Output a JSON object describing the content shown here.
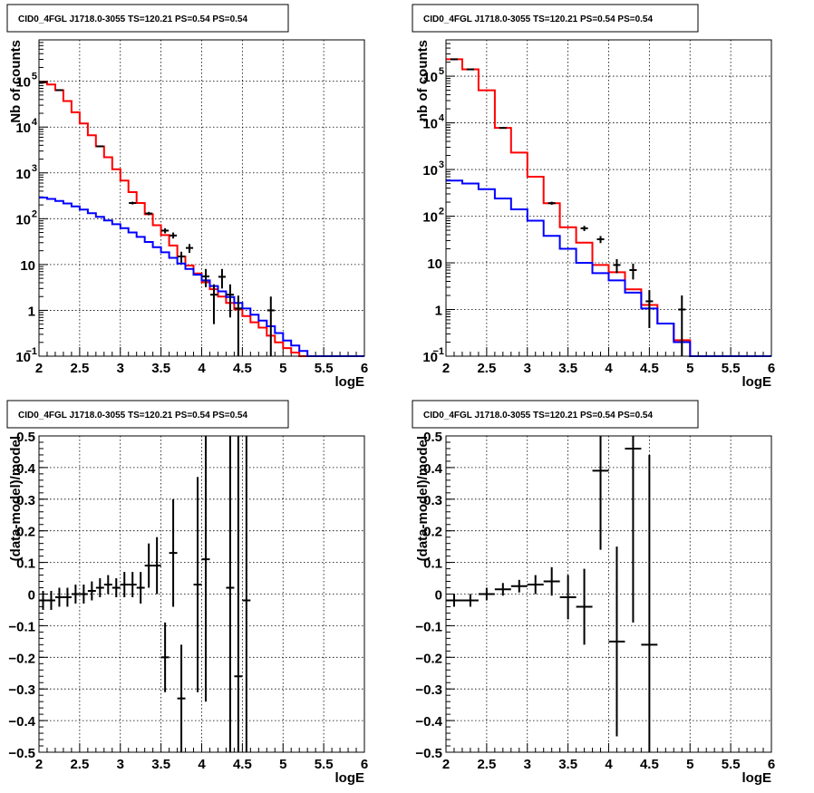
{
  "chart_data": [
    {
      "type": "line",
      "title": "CID0_4FGL J1718.0-3055 TS=120.21 PS=0.54 PS=0.54",
      "xlabel": "logE",
      "ylabel": "Nb of counts",
      "xlim": [
        2,
        6
      ],
      "ylim": [
        0.1,
        800000
      ],
      "yscale": "log",
      "grid": true,
      "xticks": [
        "2",
        "2.5",
        "3",
        "3.5",
        "4",
        "4.5",
        "5",
        "5.5",
        "6"
      ],
      "yticks": [
        {
          "v": 0.1,
          "base": "10",
          "exp": "−1"
        },
        {
          "v": 1,
          "base": "1",
          "exp": ""
        },
        {
          "v": 10,
          "base": "10",
          "exp": ""
        },
        {
          "v": 100,
          "base": "10",
          "exp": "2"
        },
        {
          "v": 1000,
          "base": "10",
          "exp": "3"
        },
        {
          "v": 10000,
          "base": "10",
          "exp": "4"
        },
        {
          "v": 100000,
          "base": "10",
          "exp": "5"
        }
      ],
      "bin_edges": [
        2,
        2.1,
        2.2,
        2.3,
        2.4,
        2.5,
        2.6,
        2.7,
        2.8,
        2.9,
        3,
        3.1,
        3.2,
        3.3,
        3.4,
        3.5,
        3.6,
        3.7,
        3.8,
        3.9,
        4,
        4.1,
        4.2,
        4.3,
        4.4,
        4.5,
        4.6,
        4.7,
        4.8,
        4.9,
        5,
        5.1,
        5.2,
        5.3,
        5.4,
        5.5,
        5.6,
        5.7,
        5.8,
        5.9,
        6
      ],
      "series": [
        {
          "color": "#ff0000",
          "values": [
            95000,
            85000,
            64000,
            37000,
            21000,
            12000,
            6600,
            3800,
            2200,
            1200,
            680,
            380,
            220,
            125,
            72,
            44,
            26,
            15,
            9.5,
            6.4,
            4.1,
            2.9,
            2.0,
            1.45,
            1.05,
            0.75,
            0.55,
            0.42,
            0.28,
            0.2,
            0.15,
            0.12,
            0.1,
            0.1,
            0.1,
            0.1,
            0.1,
            0.1,
            0.1,
            0.1
          ]
        },
        {
          "color": "#0000ff",
          "values": [
            290,
            270,
            245,
            215,
            185,
            158,
            132,
            110,
            92,
            76,
            62,
            50,
            40,
            31,
            24,
            18.5,
            14,
            10.5,
            8,
            6,
            4.5,
            3.4,
            2.6,
            1.95,
            1.45,
            1.1,
            0.8,
            0.6,
            0.45,
            0.32,
            0.22,
            0.17,
            0.13,
            0.1,
            0.1,
            0.1,
            0.1,
            0.1,
            0.1,
            0.1
          ]
        }
      ],
      "points": [
        {
          "x": 2.05,
          "y": 95000,
          "lo": 92000,
          "hi": 98000
        },
        {
          "x": 2.25,
          "y": 64000,
          "lo": 62000,
          "hi": 66000
        },
        {
          "x": 2.75,
          "y": 3800,
          "lo": 3650,
          "hi": 3950
        },
        {
          "x": 3.15,
          "y": 220,
          "lo": 205,
          "hi": 235
        },
        {
          "x": 3.35,
          "y": 130,
          "lo": 119,
          "hi": 141
        },
        {
          "x": 3.55,
          "y": 55,
          "lo": 48,
          "hi": 62
        },
        {
          "x": 3.65,
          "y": 43,
          "lo": 37,
          "hi": 50
        },
        {
          "x": 3.75,
          "y": 15,
          "lo": 11,
          "hi": 19
        },
        {
          "x": 3.85,
          "y": 23,
          "lo": 18,
          "hi": 28
        },
        {
          "x": 4.05,
          "y": 5.5,
          "lo": 3.2,
          "hi": 8
        },
        {
          "x": 4.15,
          "y": 2.2,
          "lo": 0.5,
          "hi": 3.7
        },
        {
          "x": 4.25,
          "y": 5.4,
          "lo": 3,
          "hi": 8
        },
        {
          "x": 4.35,
          "y": 2.2,
          "lo": 0.7,
          "hi": 3.7
        },
        {
          "x": 4.45,
          "y": 1.1,
          "lo": 0.1,
          "hi": 2.1
        },
        {
          "x": 4.85,
          "y": 1,
          "lo": 0.1,
          "hi": 2
        }
      ]
    },
    {
      "type": "line",
      "title": "CID0_4FGL J1718.0-3055 TS=120.21 PS=0.54 PS=0.54",
      "xlabel": "logE",
      "ylabel": "nb of counts",
      "xlim": [
        2,
        6
      ],
      "ylim": [
        0.1,
        600000
      ],
      "yscale": "log",
      "grid": true,
      "xticks": [
        "2",
        "2.5",
        "3",
        "3.5",
        "4",
        "4.5",
        "5",
        "5.5",
        "6"
      ],
      "yticks": [
        {
          "v": 0.1,
          "base": "10",
          "exp": "−1"
        },
        {
          "v": 1,
          "base": "1",
          "exp": ""
        },
        {
          "v": 10,
          "base": "10",
          "exp": ""
        },
        {
          "v": 100,
          "base": "10",
          "exp": "2"
        },
        {
          "v": 1000,
          "base": "10",
          "exp": "3"
        },
        {
          "v": 10000,
          "base": "10",
          "exp": "4"
        },
        {
          "v": 100000,
          "base": "10",
          "exp": "5"
        }
      ],
      "bin_edges": [
        2,
        2.2,
        2.4,
        2.6,
        2.8,
        3,
        3.2,
        3.4,
        3.6,
        3.8,
        4,
        4.2,
        4.4,
        4.6,
        4.8,
        5,
        5.2,
        5.4,
        5.6,
        5.8,
        6
      ],
      "series": [
        {
          "color": "#ff0000",
          "values": [
            230000,
            140000,
            50000,
            7800,
            2300,
            700,
            190,
            58,
            27,
            9,
            6.3,
            2.7,
            1.25,
            0.5,
            0.22,
            0.1,
            0.1,
            0.1,
            0.1,
            0.1
          ]
        },
        {
          "color": "#0000ff",
          "values": [
            580,
            500,
            380,
            240,
            140,
            80,
            38,
            20,
            10,
            6,
            4.2,
            2.3,
            1.05,
            0.5,
            0.2,
            0.1,
            0.1,
            0.1,
            0.1,
            0.1
          ]
        }
      ],
      "points": [
        {
          "x": 2.1,
          "y": 230000,
          "lo": 226000,
          "hi": 234000
        },
        {
          "x": 2.3,
          "y": 140000,
          "lo": 137000,
          "hi": 143000
        },
        {
          "x": 2.7,
          "y": 7800,
          "lo": 7600,
          "hi": 8000
        },
        {
          "x": 3.3,
          "y": 190,
          "lo": 176,
          "hi": 204
        },
        {
          "x": 3.7,
          "y": 55,
          "lo": 48,
          "hi": 62
        },
        {
          "x": 3.9,
          "y": 32,
          "lo": 26.5,
          "hi": 37.5
        },
        {
          "x": 4.1,
          "y": 9,
          "lo": 6,
          "hi": 12
        },
        {
          "x": 4.3,
          "y": 7,
          "lo": 4.4,
          "hi": 9.6
        },
        {
          "x": 4.5,
          "y": 1.5,
          "lo": 0.4,
          "hi": 2.6
        },
        {
          "x": 4.9,
          "y": 1,
          "lo": 0.1,
          "hi": 2
        }
      ]
    },
    {
      "type": "scatter",
      "title": "CID0_4FGL J1718.0-3055 TS=120.21 PS=0.54 PS=0.54",
      "xlabel": "logE",
      "ylabel": "(data-model)/model",
      "xlim": [
        2,
        6
      ],
      "ylim": [
        -0.5,
        0.5
      ],
      "grid": true,
      "xticks": [
        "2",
        "2.5",
        "3",
        "3.5",
        "4",
        "4.5",
        "5",
        "5.5",
        "6"
      ],
      "yticks": [
        "−0.5",
        "−0.4",
        "−0.3",
        "−0.2",
        "−0.1",
        "0",
        "0.1",
        "0.2",
        "0.3",
        "0.4",
        "0.5"
      ],
      "points": [
        {
          "x": 2.05,
          "y": -0.02,
          "err": 0.03,
          "xerr": 0.05
        },
        {
          "x": 2.15,
          "y": -0.02,
          "err": 0.03,
          "xerr": 0.05
        },
        {
          "x": 2.25,
          "y": -0.01,
          "err": 0.03,
          "xerr": 0.05
        },
        {
          "x": 2.35,
          "y": -0.01,
          "err": 0.03,
          "xerr": 0.05
        },
        {
          "x": 2.45,
          "y": 0.0,
          "err": 0.03,
          "xerr": 0.05
        },
        {
          "x": 2.55,
          "y": 0.0,
          "err": 0.03,
          "xerr": 0.05
        },
        {
          "x": 2.65,
          "y": 0.01,
          "err": 0.03,
          "xerr": 0.05
        },
        {
          "x": 2.75,
          "y": 0.02,
          "err": 0.03,
          "xerr": 0.05
        },
        {
          "x": 2.85,
          "y": 0.03,
          "err": 0.03,
          "xerr": 0.05
        },
        {
          "x": 2.95,
          "y": 0.02,
          "err": 0.03,
          "xerr": 0.05
        },
        {
          "x": 3.05,
          "y": 0.03,
          "err": 0.04,
          "xerr": 0.05
        },
        {
          "x": 3.15,
          "y": 0.03,
          "err": 0.04,
          "xerr": 0.05
        },
        {
          "x": 3.25,
          "y": 0.02,
          "err": 0.05,
          "xerr": 0.05
        },
        {
          "x": 3.35,
          "y": 0.09,
          "err": 0.07,
          "xerr": 0.05
        },
        {
          "x": 3.45,
          "y": 0.09,
          "err": 0.09,
          "xerr": 0.05
        },
        {
          "x": 3.55,
          "y": -0.2,
          "err": 0.11,
          "xerr": 0.05
        },
        {
          "x": 3.65,
          "y": 0.13,
          "err": 0.17,
          "xerr": 0.05
        },
        {
          "x": 3.75,
          "y": -0.33,
          "err": 0.17,
          "xerr": 0.05
        },
        {
          "x": 3.95,
          "y": 0.03,
          "err": 0.34,
          "xerr": 0.05
        },
        {
          "x": 4.05,
          "y": 0.11,
          "err": 0.45,
          "xerr": 0.05
        },
        {
          "x": 4.35,
          "y": 0.02,
          "err": 0.6,
          "xerr": 0.05
        },
        {
          "x": 4.45,
          "y": -0.26,
          "err": 0.8,
          "xerr": 0.05
        },
        {
          "x": 4.55,
          "y": -0.02,
          "err": 0.8,
          "xerr": 0.05
        }
      ]
    },
    {
      "type": "scatter",
      "title": "CID0_4FGL J1718.0-3055 TS=120.21 PS=0.54 PS=0.54",
      "xlabel": "logE",
      "ylabel": "(data-model)/model",
      "xlim": [
        2,
        6
      ],
      "ylim": [
        -0.5,
        0.5
      ],
      "grid": true,
      "xticks": [
        "2",
        "2.5",
        "3",
        "3.5",
        "4",
        "4.5",
        "5",
        "5.5",
        "6"
      ],
      "yticks": [
        "−0.5",
        "−0.4",
        "−0.3",
        "−0.2",
        "−0.1",
        "0",
        "0.1",
        "0.2",
        "0.3",
        "0.4",
        "0.5"
      ],
      "points": [
        {
          "x": 2.1,
          "y": -0.02,
          "err": 0.02,
          "xerr": 0.1
        },
        {
          "x": 2.3,
          "y": -0.02,
          "err": 0.02,
          "xerr": 0.1
        },
        {
          "x": 2.5,
          "y": 0.0,
          "err": 0.02,
          "xerr": 0.1
        },
        {
          "x": 2.7,
          "y": 0.015,
          "err": 0.02,
          "xerr": 0.1
        },
        {
          "x": 2.9,
          "y": 0.025,
          "err": 0.02,
          "xerr": 0.1
        },
        {
          "x": 3.1,
          "y": 0.03,
          "err": 0.03,
          "xerr": 0.1
        },
        {
          "x": 3.3,
          "y": 0.04,
          "err": 0.045,
          "xerr": 0.1
        },
        {
          "x": 3.5,
          "y": -0.01,
          "err": 0.07,
          "xerr": 0.1
        },
        {
          "x": 3.7,
          "y": -0.04,
          "err": 0.12,
          "xerr": 0.1
        },
        {
          "x": 3.9,
          "y": 0.39,
          "err": 0.25,
          "xerr": 0.1
        },
        {
          "x": 4.1,
          "y": -0.15,
          "err": 0.3,
          "xerr": 0.1
        },
        {
          "x": 4.3,
          "y": 0.46,
          "err": 0.55,
          "xerr": 0.1
        },
        {
          "x": 4.5,
          "y": -0.16,
          "err": 0.6,
          "xerr": 0.1
        }
      ]
    }
  ]
}
